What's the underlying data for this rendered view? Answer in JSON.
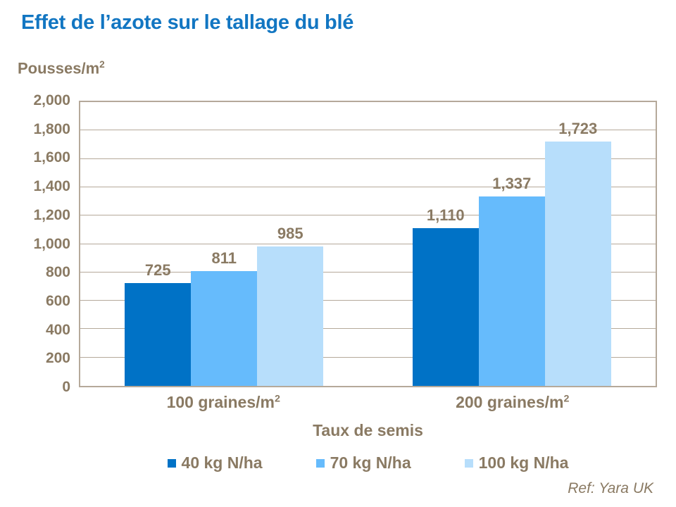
{
  "colors": {
    "title_blue": "#1276C2",
    "text_brown": "#8A7A63",
    "frame_tan": "#B5A99A",
    "bar_dark": "#0072C6",
    "bar_mid": "#66BBFC",
    "bar_light": "#B7DEFB"
  },
  "source_note": "Ref: Yara UK",
  "chart_data": {
    "type": "bar",
    "title": "Effet de l’azote sur le tallage du blé",
    "ylabel": {
      "base": "Pousses/m",
      "sup": "2"
    },
    "xlabel": "Taux de semis",
    "categories": [
      {
        "base": "100 graines/m",
        "sup": "2"
      },
      {
        "base": "200 graines/m",
        "sup": "2"
      }
    ],
    "series": [
      {
        "name": "40 kg N/ha",
        "color": "#0072C6",
        "values": [
          725,
          1110
        ],
        "labels": [
          "725",
          "1,110"
        ]
      },
      {
        "name": "70 kg N/ha",
        "color": "#66BBFC",
        "values": [
          811,
          1337
        ],
        "labels": [
          "811",
          "1,337"
        ]
      },
      {
        "name": "100 kg N/ha",
        "color": "#B7DEFB",
        "values": [
          985,
          1723
        ],
        "labels": [
          "985",
          "1,723"
        ]
      }
    ],
    "ylim": [
      0,
      2000
    ],
    "ytick_step": 200,
    "ytick_labels": [
      "0",
      "200",
      "400",
      "600",
      "800",
      "1,000",
      "1,200",
      "1,400",
      "1,600",
      "1,800",
      "2,000"
    ],
    "grid": true,
    "legend_position": "bottom"
  }
}
